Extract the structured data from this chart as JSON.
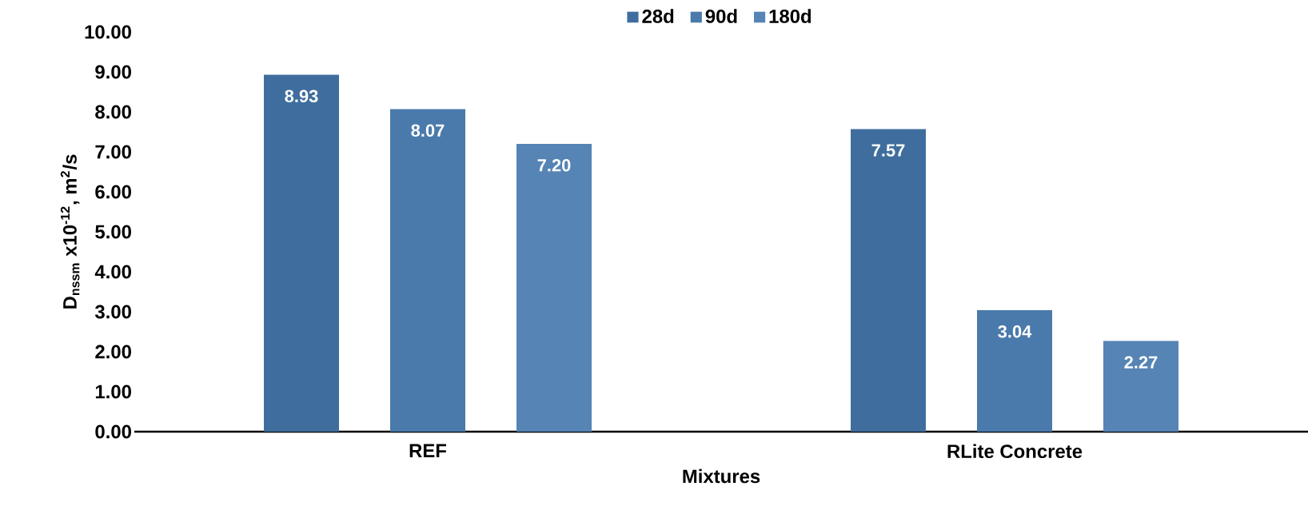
{
  "chart_data": {
    "type": "bar",
    "xlabel": "Mixtures",
    "ylabel": "D$_{nssm}$ x10$^{-12}$, m$^{2}$/s",
    "categories": [
      "REF",
      "RLite Concrete"
    ],
    "series": [
      {
        "name": "28d",
        "color": "#3f6e9e",
        "values": [
          8.93,
          7.57
        ],
        "value_labels": [
          "8.93",
          "7.57"
        ]
      },
      {
        "name": "90d",
        "color": "#4a7aab",
        "values": [
          8.07,
          3.04
        ],
        "value_labels": [
          "8.07",
          "3.04"
        ]
      },
      {
        "name": "180d",
        "color": "#5584b5",
        "values": [
          7.2,
          2.27
        ],
        "value_labels": [
          "7.20",
          "2.27"
        ]
      }
    ],
    "ylim": [
      0,
      10
    ],
    "yticks": [
      {
        "value": 0,
        "label": "0.00"
      },
      {
        "value": 1,
        "label": "1.00"
      },
      {
        "value": 2,
        "label": "2.00"
      },
      {
        "value": 3,
        "label": "3.00"
      },
      {
        "value": 4,
        "label": "4.00"
      },
      {
        "value": 5,
        "label": "5.00"
      },
      {
        "value": 6,
        "label": "6.00"
      },
      {
        "value": 7,
        "label": "7.00"
      },
      {
        "value": 8,
        "label": "8.00"
      },
      {
        "value": 9,
        "label": "9.00"
      },
      {
        "value": 10,
        "label": "10.00"
      }
    ],
    "legend": "top"
  }
}
